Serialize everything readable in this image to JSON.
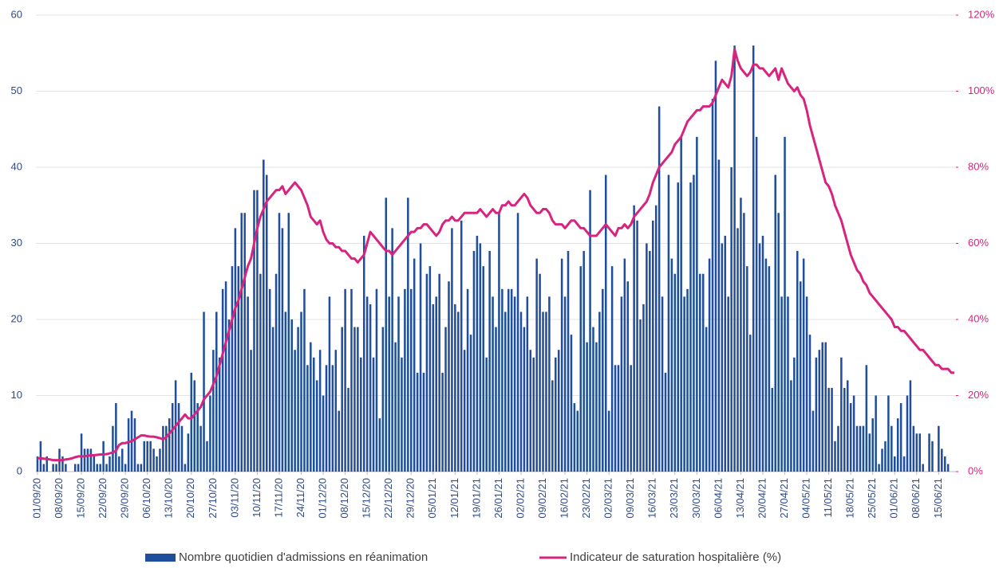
{
  "chart_data": {
    "type": "combo",
    "categories": [
      "01/09/20",
      null,
      null,
      null,
      null,
      null,
      null,
      "08/09/20",
      null,
      null,
      null,
      null,
      null,
      null,
      "15/09/20",
      null,
      null,
      null,
      null,
      null,
      null,
      "22/09/20",
      null,
      null,
      null,
      null,
      null,
      null,
      "29/09/20",
      null,
      null,
      null,
      null,
      null,
      null,
      "06/10/20",
      null,
      null,
      null,
      null,
      null,
      null,
      "13/10/20",
      null,
      null,
      null,
      null,
      null,
      null,
      "20/10/20",
      null,
      null,
      null,
      null,
      null,
      null,
      "27/10/20",
      null,
      null,
      null,
      null,
      null,
      null,
      "03/11/20",
      null,
      null,
      null,
      null,
      null,
      null,
      "10/11/20",
      null,
      null,
      null,
      null,
      null,
      null,
      "17/11/20",
      null,
      null,
      null,
      null,
      null,
      null,
      "24/11/20",
      null,
      null,
      null,
      null,
      null,
      null,
      "01/12/20",
      null,
      null,
      null,
      null,
      null,
      null,
      "08/12/20",
      null,
      null,
      null,
      null,
      null,
      null,
      "15/12/20",
      null,
      null,
      null,
      null,
      null,
      null,
      "22/12/20",
      null,
      null,
      null,
      null,
      null,
      null,
      "29/12/20",
      null,
      null,
      null,
      null,
      null,
      null,
      "05/01/21",
      null,
      null,
      null,
      null,
      null,
      null,
      "12/01/21",
      null,
      null,
      null,
      null,
      null,
      null,
      "19/01/21",
      null,
      null,
      null,
      null,
      null,
      null,
      "26/01/21",
      null,
      null,
      null,
      null,
      null,
      null,
      "02/02/21",
      null,
      null,
      null,
      null,
      null,
      null,
      "09/02/21",
      null,
      null,
      null,
      null,
      null,
      null,
      "16/02/21",
      null,
      null,
      null,
      null,
      null,
      null,
      "23/02/21",
      null,
      null,
      null,
      null,
      null,
      null,
      "02/03/21",
      null,
      null,
      null,
      null,
      null,
      null,
      "09/03/21",
      null,
      null,
      null,
      null,
      null,
      null,
      "16/03/21",
      null,
      null,
      null,
      null,
      null,
      null,
      "23/03/21",
      null,
      null,
      null,
      null,
      null,
      null,
      "30/03/21",
      null,
      null,
      null,
      null,
      null,
      null,
      "06/04/21",
      null,
      null,
      null,
      null,
      null,
      null,
      "13/04/21",
      null,
      null,
      null,
      null,
      null,
      null,
      "20/04/21",
      null,
      null,
      null,
      null,
      null,
      null,
      "27/04/21",
      null,
      null,
      null,
      null,
      null,
      null,
      "04/05/21",
      null,
      null,
      null,
      null,
      null,
      null,
      "11/05/21",
      null,
      null,
      null,
      null,
      null,
      null,
      "18/05/21",
      null,
      null,
      null,
      null,
      null,
      null,
      "25/05/21",
      null,
      null,
      null,
      null,
      null,
      null,
      "01/06/21",
      null,
      null,
      null,
      null,
      null,
      null,
      "08/06/21",
      null,
      null,
      null,
      null,
      null,
      null,
      "15/06/21",
      null,
      null,
      null,
      null,
      null
    ],
    "series": [
      {
        "name": "Nombre quotidien d'admissions en réanimation",
        "type": "bar",
        "color": "#1f4e9c",
        "values": [
          2,
          4,
          1,
          2,
          0,
          1,
          1,
          3,
          2,
          1,
          0,
          0,
          1,
          1,
          5,
          3,
          3,
          3,
          2,
          1,
          1,
          4,
          1,
          2,
          6,
          9,
          2,
          3,
          1,
          7,
          8,
          7,
          1,
          1,
          4,
          4,
          4,
          3,
          2,
          3,
          6,
          6,
          7,
          9,
          12,
          9,
          6,
          1,
          5,
          13,
          12,
          9,
          6,
          21,
          4,
          10,
          16,
          21,
          15,
          24,
          25,
          20,
          27,
          32,
          27,
          34,
          34,
          23,
          16,
          37,
          37,
          26,
          41,
          39,
          24,
          19,
          26,
          34,
          32,
          21,
          34,
          20,
          16,
          19,
          21,
          24,
          14,
          17,
          15,
          12,
          16,
          10,
          14,
          23,
          14,
          16,
          8,
          19,
          24,
          11,
          24,
          19,
          19,
          15,
          31,
          23,
          22,
          15,
          24,
          7,
          19,
          36,
          23,
          32,
          17,
          23,
          15,
          24,
          36,
          24,
          28,
          13,
          30,
          13,
          26,
          27,
          22,
          23,
          26,
          13,
          19,
          25,
          32,
          22,
          21,
          33,
          16,
          24,
          18,
          29,
          31,
          30,
          27,
          15,
          29,
          23,
          19,
          34,
          24,
          21,
          24,
          24,
          23,
          34,
          21,
          19,
          23,
          16,
          15,
          28,
          26,
          21,
          21,
          23,
          12,
          15,
          16,
          28,
          23,
          29,
          18,
          9,
          8,
          27,
          29,
          17,
          37,
          19,
          17,
          21,
          24,
          39,
          8,
          27,
          14,
          14,
          23,
          28,
          25,
          14,
          35,
          33,
          20,
          22,
          30,
          29,
          33,
          35,
          48,
          23,
          13,
          39,
          28,
          26,
          38,
          44,
          23,
          24,
          38,
          39,
          44,
          26,
          26,
          19,
          28,
          49,
          54,
          41,
          30,
          31,
          23,
          40,
          56,
          32,
          36,
          34,
          27,
          18,
          56,
          44,
          30,
          31,
          28,
          27,
          11,
          39,
          34,
          23,
          44,
          23,
          12,
          15,
          29,
          25,
          28,
          23,
          18,
          8,
          15,
          16,
          17,
          17,
          11,
          11,
          4,
          6,
          15,
          11,
          12,
          9,
          10,
          6,
          6,
          6,
          14,
          5,
          7,
          10,
          1,
          3,
          4,
          10,
          6,
          2,
          7,
          9,
          2,
          10,
          12,
          6,
          5,
          5,
          1,
          0,
          5,
          4,
          0,
          6,
          3,
          2,
          1,
          0,
          0
        ]
      },
      {
        "name": "Indicateur de saturation hospitalière (%)",
        "type": "line",
        "axis": "y2",
        "color": "#d6247f",
        "values": [
          3.5,
          3.5,
          3.4,
          3.3,
          3.2,
          3,
          3,
          3,
          3,
          3.2,
          3.3,
          3.5,
          3.8,
          4,
          4,
          4,
          4.2,
          4.3,
          4.3,
          4.4,
          4.5,
          4.5,
          4.6,
          4.8,
          5,
          5.5,
          7,
          7.5,
          7.5,
          7.8,
          8,
          8.5,
          9,
          9.5,
          9.5,
          9.3,
          9.2,
          9.2,
          9,
          8.8,
          8.5,
          9,
          10,
          11,
          12,
          13,
          14,
          15,
          14,
          14,
          15,
          16,
          17,
          19,
          20,
          21,
          23,
          25,
          28,
          31,
          34,
          37,
          40,
          43,
          45,
          48,
          51,
          54,
          56,
          60,
          64,
          67,
          69,
          71,
          72,
          73,
          74,
          74,
          75,
          73,
          74,
          75,
          76,
          75,
          74,
          72,
          70,
          67,
          66,
          65,
          66,
          63,
          61,
          60,
          60,
          59,
          59,
          58,
          58,
          57,
          56,
          56,
          55,
          56,
          57,
          60,
          63,
          62,
          61,
          60,
          59,
          58,
          58,
          57,
          58,
          59,
          60,
          61,
          62,
          63,
          63,
          64,
          64,
          65,
          65,
          64,
          63,
          62,
          63,
          65,
          66,
          66,
          67,
          66,
          66,
          67,
          68,
          68,
          68,
          68,
          68,
          69,
          68,
          67,
          68,
          69,
          68,
          68,
          70,
          70,
          71,
          70,
          70,
          71,
          72,
          73,
          72,
          70,
          69,
          68,
          68,
          69,
          69,
          68,
          66,
          65,
          65,
          65,
          64,
          65,
          66,
          66,
          65,
          64,
          64,
          63,
          62,
          62,
          62,
          63,
          64,
          65,
          64,
          63,
          62,
          64,
          64,
          65,
          64,
          65,
          67,
          68,
          69,
          70,
          71,
          73,
          76,
          78,
          80,
          81,
          82,
          83,
          84,
          86,
          87,
          88,
          90,
          92,
          93,
          94,
          95,
          95,
          96,
          96,
          96,
          97,
          99,
          101,
          103,
          102,
          101,
          104,
          111,
          108,
          106,
          105,
          104,
          105,
          107,
          107,
          106,
          106,
          105,
          104,
          105,
          106,
          103,
          106,
          104,
          102,
          101,
          100,
          101,
          99,
          98,
          95,
          91,
          88,
          85,
          82,
          79,
          76,
          75,
          73,
          70,
          68,
          66,
          63,
          60,
          57,
          55,
          53,
          52,
          50,
          49,
          47,
          46,
          45,
          44,
          43,
          42,
          41,
          40,
          38,
          38,
          37,
          37,
          36,
          35,
          34,
          33,
          32,
          32,
          31,
          30,
          29,
          28,
          28,
          27,
          27,
          27,
          26,
          26
        ]
      }
    ],
    "ylim": [
      0,
      60
    ],
    "yticks": [
      0,
      10,
      20,
      30,
      40,
      50,
      60
    ],
    "y2lim": [
      0,
      120
    ],
    "y2ticks": [
      {
        "value": 0,
        "label": "0%"
      },
      {
        "value": 20,
        "label": "20%"
      },
      {
        "value": 40,
        "label": "40%"
      },
      {
        "value": 60,
        "label": "60%"
      },
      {
        "value": 80,
        "label": "80%"
      },
      {
        "value": 100,
        "label": "100%"
      },
      {
        "value": 120,
        "label": "120%"
      }
    ],
    "grid": true,
    "legend": "bottom"
  }
}
